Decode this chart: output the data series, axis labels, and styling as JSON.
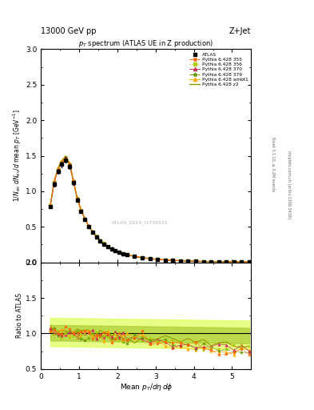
{
  "title_top": "13000 GeV pp",
  "title_right": "Z+Jet",
  "plot_title": "p_T spectrum (ATLAS UE in Z production)",
  "ylabel_main": "1/N_{ev} dN_{ev}/d mean p_T [GeV]^{-1}",
  "ylabel_ratio": "Ratio to ATLAS",
  "xlabel": "Mean $p_T$/d$\\eta$ d$\\phi$",
  "watermark": "ATLAS_2019_I1736531",
  "rivet_text": "Rivet 3.1.10, ≥ 3.2M events",
  "mcplots_text": "mcplots.cern.ch [arXiv:1306.3436]",
  "ylim_main": [
    0,
    3.0
  ],
  "ylim_ratio": [
    0.5,
    2.0
  ],
  "xlim": [
    0,
    5.5
  ],
  "c355": "#FF6600",
  "c356": "#AACC00",
  "c370": "#CC3355",
  "c379": "#669900",
  "c_ambt1": "#FFAA00",
  "c_z2": "#999900",
  "band_outer": "#EEFF55",
  "band_inner": "#AACC00",
  "background_color": "#FFFFFF"
}
